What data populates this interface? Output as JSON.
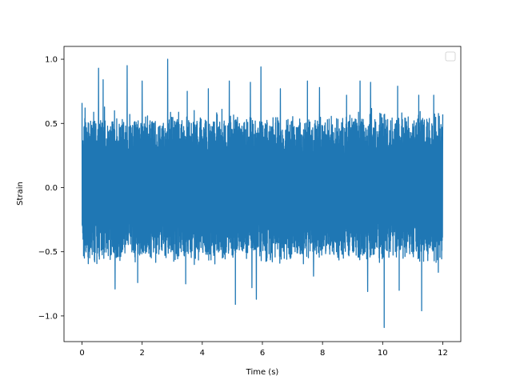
{
  "chart_data": {
    "type": "line",
    "title": "",
    "xlabel": "Time (s)",
    "ylabel": "Strain",
    "xlim": [
      -0.6,
      12.6
    ],
    "ylim": [
      -1.2,
      1.1
    ],
    "x_ticks": [
      0,
      2,
      4,
      6,
      8,
      10,
      12
    ],
    "y_ticks": [
      -1.0,
      -0.5,
      0.0,
      0.5,
      1.0
    ],
    "x_tick_labels": [
      "0",
      "2",
      "4",
      "6",
      "8",
      "10",
      "12"
    ],
    "y_tick_labels": [
      "−1.0",
      "−0.5",
      "0.0",
      "0.5",
      "1.0"
    ],
    "grid": false,
    "legend": {
      "placement": "top-right",
      "entries": []
    },
    "series": [
      {
        "color": "#1f77b4",
        "x_range": [
          0,
          12
        ],
        "typical_envelope": [
          -0.5,
          0.5
        ],
        "peaks": [
          {
            "x": 0.0,
            "y": 0.66
          },
          {
            "x": 0.1,
            "y": 0.62
          },
          {
            "x": 0.55,
            "y": 0.93
          },
          {
            "x": 0.7,
            "y": 0.84
          },
          {
            "x": 1.5,
            "y": 0.95
          },
          {
            "x": 2.0,
            "y": 0.83
          },
          {
            "x": 2.85,
            "y": 1.0
          },
          {
            "x": 3.5,
            "y": 0.75
          },
          {
            "x": 4.2,
            "y": 0.77
          },
          {
            "x": 4.9,
            "y": 0.83
          },
          {
            "x": 5.6,
            "y": 0.82
          },
          {
            "x": 5.95,
            "y": 0.94
          },
          {
            "x": 6.6,
            "y": 0.77
          },
          {
            "x": 7.5,
            "y": 0.83
          },
          {
            "x": 7.9,
            "y": 0.78
          },
          {
            "x": 8.8,
            "y": 0.72
          },
          {
            "x": 9.25,
            "y": 0.83
          },
          {
            "x": 9.6,
            "y": 0.82
          },
          {
            "x": 10.5,
            "y": 0.79
          },
          {
            "x": 11.2,
            "y": 0.72
          },
          {
            "x": 11.7,
            "y": 0.72
          },
          {
            "x": 12.0,
            "y": 0.57
          }
        ],
        "troughs": [
          {
            "x": 0.1,
            "y": -0.64
          },
          {
            "x": 1.1,
            "y": -0.79
          },
          {
            "x": 1.85,
            "y": -0.74
          },
          {
            "x": 3.45,
            "y": -0.75
          },
          {
            "x": 5.1,
            "y": -0.91
          },
          {
            "x": 5.65,
            "y": -0.78
          },
          {
            "x": 5.8,
            "y": -0.87
          },
          {
            "x": 6.6,
            "y": -0.73
          },
          {
            "x": 7.7,
            "y": -0.69
          },
          {
            "x": 9.5,
            "y": -0.81
          },
          {
            "x": 10.05,
            "y": -1.09
          },
          {
            "x": 10.55,
            "y": -0.8
          },
          {
            "x": 11.3,
            "y": -0.96
          },
          {
            "x": 11.85,
            "y": -0.66
          }
        ]
      }
    ]
  }
}
